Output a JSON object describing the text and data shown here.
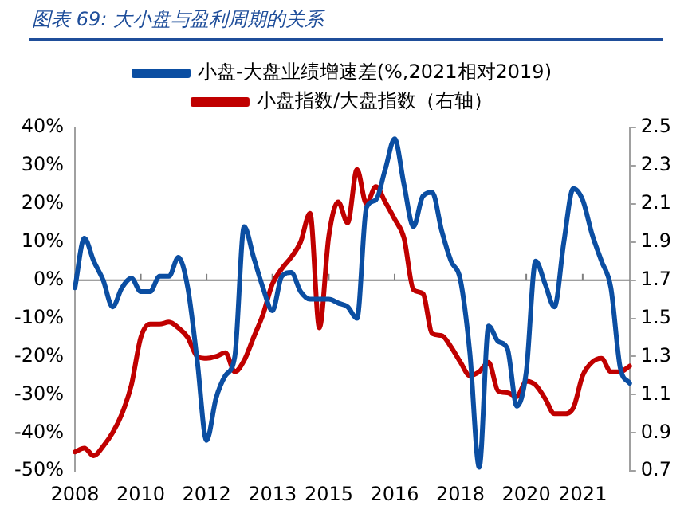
{
  "chart_data": {
    "type": "line",
    "title": "图表 69:  大小盘与盈利周期的关系",
    "categories": [
      "2008",
      null,
      null,
      null,
      null,
      null,
      null,
      "2010",
      null,
      null,
      null,
      null,
      null,
      null,
      "2012",
      null,
      null,
      null,
      null,
      null,
      null,
      "2013",
      null,
      null,
      null,
      null,
      null,
      "2015",
      null,
      null,
      null,
      null,
      null,
      null,
      "2016",
      null,
      null,
      null,
      null,
      null,
      null,
      "2018",
      null,
      null,
      null,
      null,
      null,
      null,
      "2020",
      null,
      null,
      null,
      null,
      null,
      "2021",
      null,
      null,
      null,
      null,
      null
    ],
    "series": [
      {
        "name": "小盘-大盘业绩增速差(%,2021相对2019)",
        "color": "#0b4ea2",
        "values": [
          -2,
          11,
          5,
          0,
          -7,
          -2,
          0.5,
          -3,
          -3,
          1,
          1,
          6,
          -2,
          -21,
          -42,
          -31,
          -25,
          -20,
          14,
          6,
          -2,
          -8,
          1,
          2,
          -3,
          -5,
          -5,
          -5,
          -6,
          -7,
          -10,
          19,
          21,
          29,
          37,
          25,
          14,
          22,
          23,
          13,
          5,
          0,
          -19,
          -49,
          -12,
          -16,
          -18,
          -33,
          -24,
          5,
          -1,
          -7,
          10,
          24,
          21,
          12,
          5,
          -2,
          -23,
          -27
        ]
      },
      {
        "name": "小盘指数/大盘指数（右轴）",
        "color": "#c00000",
        "axis": "y2",
        "values": [
          0.8,
          0.82,
          0.78,
          0.83,
          0.9,
          1.0,
          1.15,
          1.4,
          1.47,
          1.47,
          1.48,
          1.45,
          1.4,
          1.3,
          1.29,
          1.3,
          1.32,
          1.22,
          1.28,
          1.4,
          1.52,
          1.68,
          1.76,
          1.82,
          1.9,
          2.05,
          1.45,
          1.93,
          2.11,
          2.0,
          2.28,
          2.1,
          2.19,
          2.11,
          2.02,
          1.92,
          1.65,
          1.63,
          1.42,
          1.41,
          1.35,
          1.27,
          1.2,
          1.22,
          1.27,
          1.12,
          1.11,
          1.09,
          1.17,
          1.15,
          1.08,
          1.0,
          1.0,
          1.03,
          1.2,
          1.27,
          1.29,
          1.22,
          1.22,
          1.25
        ]
      }
    ],
    "ylim": [
      -50,
      40
    ],
    "yticks": [
      {
        "value": -50,
        "label": "-50%"
      },
      {
        "value": -40,
        "label": "-40%"
      },
      {
        "value": -30,
        "label": "-30%"
      },
      {
        "value": -20,
        "label": "-20%"
      },
      {
        "value": -10,
        "label": "-10%"
      },
      {
        "value": 0,
        "label": "0%"
      },
      {
        "value": 10,
        "label": "10%"
      },
      {
        "value": 20,
        "label": "20%"
      },
      {
        "value": 30,
        "label": "30%"
      },
      {
        "value": 40,
        "label": "40%"
      }
    ],
    "y2lim": [
      0.7,
      2.5
    ],
    "y2ticks": [
      {
        "value": 0.7,
        "label": "0.7"
      },
      {
        "value": 0.9,
        "label": "0.9"
      },
      {
        "value": 1.1,
        "label": "1.1"
      },
      {
        "value": 1.3,
        "label": "1.3"
      },
      {
        "value": 1.5,
        "label": "1.5"
      },
      {
        "value": 1.7,
        "label": "1.7"
      },
      {
        "value": 1.9,
        "label": "1.9"
      },
      {
        "value": 2.1,
        "label": "2.1"
      },
      {
        "value": 2.3,
        "label": "2.3"
      },
      {
        "value": 2.5,
        "label": "2.5"
      }
    ],
    "ref_lines": [
      {
        "axis": "y",
        "value": 0,
        "color": "#808080"
      }
    ],
    "grid": false,
    "legend": "top",
    "marker": "none",
    "line_style": "solid"
  }
}
